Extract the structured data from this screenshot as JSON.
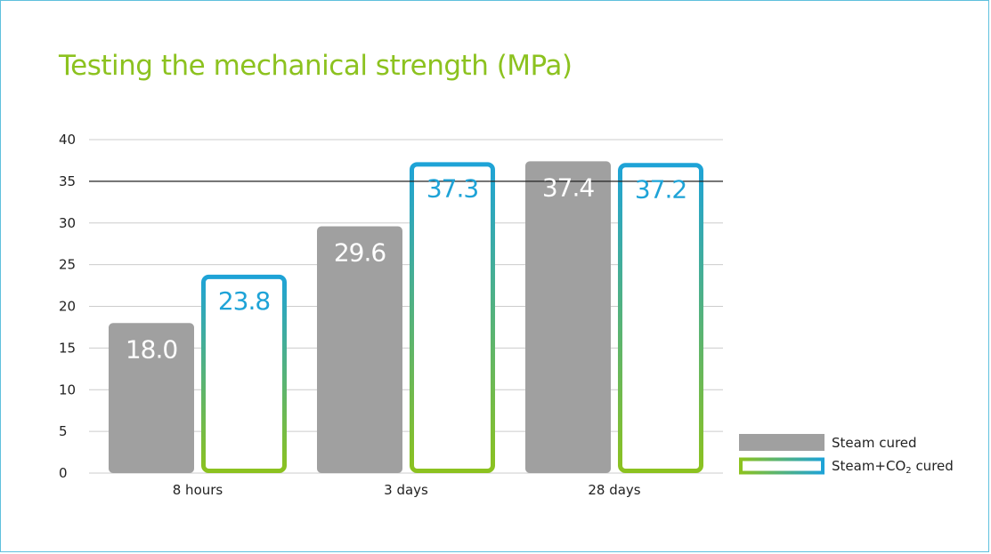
{
  "colors": {
    "title": "#8cc21f",
    "steam": "#a0a0a0",
    "steam_label": "#ffffff",
    "co2_label": "#1ea3d7",
    "gradient_top": "#1ea3d7",
    "gradient_bottom": "#8cc21f",
    "grid": "#cccccc",
    "reference_line": "#222222",
    "border": "#5fc0dd"
  },
  "chart_data": {
    "type": "bar",
    "title": "Testing the mechanical strength (MPa)",
    "categories": [
      "8 hours",
      "3 days",
      "28 days"
    ],
    "series": [
      {
        "name": "Steam cured",
        "values": [
          18.0,
          29.6,
          37.4
        ],
        "labels": [
          "18.0",
          "29.6",
          "37.4"
        ],
        "style": "filled-gray"
      },
      {
        "name": "Steam+CO",
        "name_subscript": "2",
        "name_suffix": " cured",
        "values": [
          23.8,
          37.3,
          37.2
        ],
        "labels": [
          "23.8",
          "37.3",
          "37.2"
        ],
        "style": "outlined-gradient"
      }
    ],
    "ylim": [
      0,
      40
    ],
    "yticks": [
      "0",
      "5",
      "10",
      "15",
      "20",
      "25",
      "30",
      "35",
      "40"
    ],
    "reference_line": 35,
    "grid": true,
    "xlabel": "",
    "ylabel": "",
    "legend_position": "bottom-right"
  }
}
